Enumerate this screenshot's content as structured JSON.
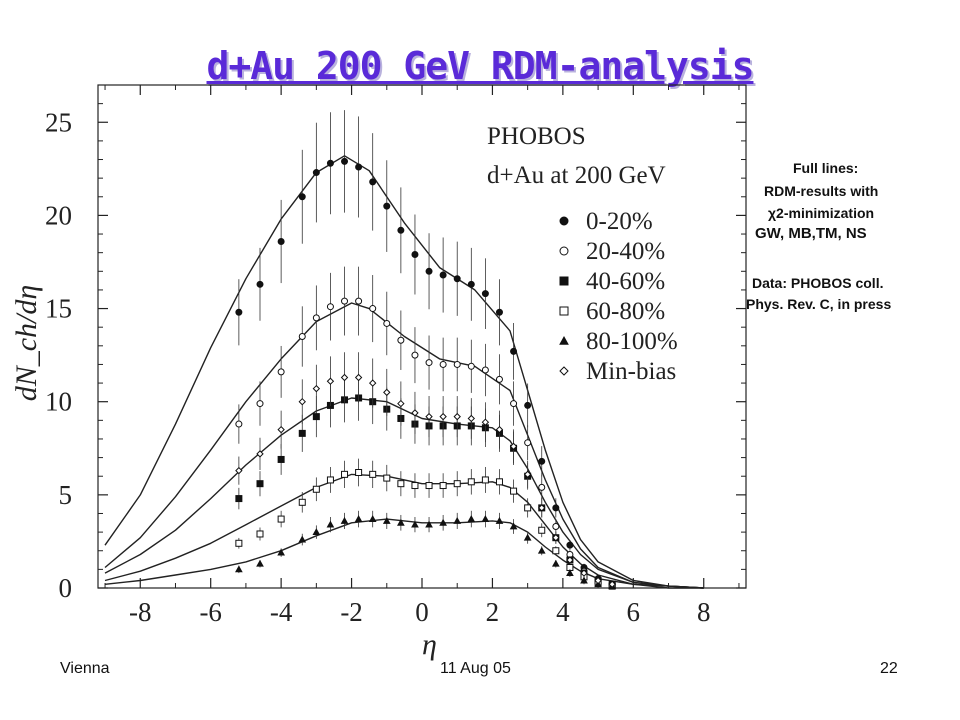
{
  "slide": {
    "title": "d+Au 200 GeV  RDM-analysis",
    "footer_left": "Vienna",
    "footer_center": "11 Aug 05",
    "footer_right": "22"
  },
  "notes": {
    "fit_line1": "Full lines:",
    "fit_line2": "RDM-results with",
    "fit_line3": "χ2-minimization",
    "fit_line4": "GW, MB,TM, NS",
    "data_line1": "Data: PHOBOS coll.",
    "data_line2": "Phys. Rev. C, in press"
  },
  "chart_data": {
    "type": "scatter",
    "title": "PHOBOS",
    "subtitle": "d+Au at 200 GeV",
    "xlabel": "η",
    "ylabel": "dN_ch/dη",
    "xlim": [
      -9.2,
      9.2
    ],
    "ylim": [
      0,
      27
    ],
    "x_ticks": [
      -8,
      -6,
      -4,
      -2,
      0,
      2,
      4,
      6,
      8
    ],
    "y_ticks": [
      0,
      5,
      10,
      15,
      20,
      25
    ],
    "grid": false,
    "legend_position": "top-right",
    "series": [
      {
        "name": "0-20%",
        "marker": "filled-circle",
        "x": [
          -5.2,
          -4.6,
          -4.0,
          -3.4,
          -3.0,
          -2.6,
          -2.2,
          -1.8,
          -1.4,
          -1.0,
          -0.6,
          -0.2,
          0.2,
          0.6,
          1.0,
          1.4,
          1.8,
          2.2,
          2.6,
          3.0,
          3.4,
          3.8,
          4.2,
          4.6,
          5.0,
          5.4
        ],
        "y": [
          14.8,
          16.3,
          18.6,
          21.0,
          22.3,
          22.8,
          22.9,
          22.6,
          21.8,
          20.5,
          19.2,
          17.9,
          17.0,
          16.8,
          16.6,
          16.3,
          15.8,
          14.8,
          12.7,
          9.8,
          6.8,
          4.3,
          2.3,
          1.1,
          0.5,
          0.2
        ]
      },
      {
        "name": "20-40%",
        "marker": "open-circle",
        "x": [
          -5.2,
          -4.6,
          -4.0,
          -3.4,
          -3.0,
          -2.6,
          -2.2,
          -1.8,
          -1.4,
          -1.0,
          -0.6,
          -0.2,
          0.2,
          0.6,
          1.0,
          1.4,
          1.8,
          2.2,
          2.6,
          3.0,
          3.4,
          3.8,
          4.2,
          4.6,
          5.0,
          5.4
        ],
        "y": [
          8.8,
          9.9,
          11.6,
          13.5,
          14.5,
          15.1,
          15.4,
          15.4,
          15.0,
          14.2,
          13.3,
          12.5,
          12.1,
          12.0,
          12.0,
          11.9,
          11.7,
          11.2,
          9.9,
          7.8,
          5.4,
          3.3,
          1.8,
          0.9,
          0.4,
          0.2
        ]
      },
      {
        "name": "40-60%",
        "marker": "filled-square",
        "x": [
          -5.2,
          -4.6,
          -4.0,
          -3.4,
          -3.0,
          -2.6,
          -2.2,
          -1.8,
          -1.4,
          -1.0,
          -0.6,
          -0.2,
          0.2,
          0.6,
          1.0,
          1.4,
          1.8,
          2.2,
          2.6,
          3.0,
          3.4,
          3.8,
          4.2,
          4.6,
          5.0,
          5.4
        ],
        "y": [
          4.8,
          5.6,
          6.9,
          8.3,
          9.2,
          9.8,
          10.1,
          10.2,
          10.0,
          9.6,
          9.1,
          8.8,
          8.7,
          8.7,
          8.7,
          8.7,
          8.6,
          8.3,
          7.5,
          6.0,
          4.3,
          2.7,
          1.5,
          0.8,
          0.4,
          0.2
        ]
      },
      {
        "name": "60-80%",
        "marker": "open-square",
        "x": [
          -5.2,
          -4.6,
          -4.0,
          -3.4,
          -3.0,
          -2.6,
          -2.2,
          -1.8,
          -1.4,
          -1.0,
          -0.6,
          -0.2,
          0.2,
          0.6,
          1.0,
          1.4,
          1.8,
          2.2,
          2.6,
          3.0,
          3.4,
          3.8,
          4.2,
          4.6,
          5.0,
          5.4
        ],
        "y": [
          2.4,
          2.9,
          3.7,
          4.6,
          5.3,
          5.8,
          6.1,
          6.2,
          6.1,
          5.9,
          5.6,
          5.5,
          5.5,
          5.5,
          5.6,
          5.7,
          5.8,
          5.7,
          5.2,
          4.3,
          3.1,
          2.0,
          1.1,
          0.6,
          0.3,
          0.1
        ]
      },
      {
        "name": "80-100%",
        "marker": "filled-triangle",
        "x": [
          -5.2,
          -4.6,
          -4.0,
          -3.4,
          -3.0,
          -2.6,
          -2.2,
          -1.8,
          -1.4,
          -1.0,
          -0.6,
          -0.2,
          0.2,
          0.6,
          1.0,
          1.4,
          1.8,
          2.2,
          2.6,
          3.0,
          3.4,
          3.8,
          4.2,
          4.6,
          5.0,
          5.4
        ],
        "y": [
          1.0,
          1.3,
          1.9,
          2.6,
          3.0,
          3.4,
          3.6,
          3.7,
          3.7,
          3.6,
          3.5,
          3.4,
          3.4,
          3.5,
          3.6,
          3.7,
          3.7,
          3.6,
          3.3,
          2.7,
          2.0,
          1.3,
          0.8,
          0.4,
          0.2,
          0.1
        ]
      },
      {
        "name": "Min-bias",
        "marker": "open-diamond",
        "x": [
          -5.2,
          -4.6,
          -4.0,
          -3.4,
          -3.0,
          -2.6,
          -2.2,
          -1.8,
          -1.4,
          -1.0,
          -0.6,
          -0.2,
          0.2,
          0.6,
          1.0,
          1.4,
          1.8,
          2.2,
          2.6,
          3.0,
          3.4,
          3.8,
          4.2,
          4.6,
          5.0,
          5.4
        ],
        "y": [
          6.3,
          7.2,
          8.5,
          10.0,
          10.7,
          11.1,
          11.3,
          11.3,
          11.0,
          10.5,
          9.9,
          9.4,
          9.2,
          9.2,
          9.2,
          9.1,
          8.9,
          8.5,
          7.6,
          6.1,
          4.3,
          2.7,
          1.5,
          0.8,
          0.4,
          0.2
        ]
      }
    ],
    "fit_curves": [
      {
        "x": [
          -9,
          -8,
          -7,
          -6,
          -5,
          -4,
          -3,
          -2.2,
          -1.5,
          -0.5,
          0.5,
          1.5,
          2.5,
          3,
          3.5,
          4,
          4.5,
          5,
          6,
          7,
          8
        ],
        "y": [
          2.3,
          5.0,
          8.8,
          12.9,
          16.6,
          19.8,
          22.3,
          23.2,
          22.4,
          19.6,
          17.2,
          16.0,
          13.8,
          10.6,
          7.4,
          4.6,
          2.6,
          1.4,
          0.4,
          0.1,
          0.0
        ]
      },
      {
        "x": [
          -9,
          -8,
          -7,
          -6,
          -5,
          -4,
          -3,
          -2,
          -1.5,
          -0.5,
          0.5,
          1.5,
          2.5,
          3,
          3.5,
          4,
          4.5,
          5,
          6,
          7,
          8
        ],
        "y": [
          1.1,
          2.7,
          4.9,
          7.4,
          10.0,
          12.3,
          14.3,
          15.3,
          15.0,
          13.5,
          12.3,
          11.9,
          10.6,
          8.2,
          5.8,
          3.7,
          2.1,
          1.1,
          0.3,
          0.1,
          0.0
        ]
      },
      {
        "x": [
          -9,
          -8,
          -7,
          -6,
          -5,
          -4,
          -3,
          -2,
          -1,
          0,
          1,
          2,
          2.5,
          3,
          3.5,
          4,
          4.5,
          5,
          6,
          7,
          8
        ],
        "y": [
          0.8,
          1.8,
          3.1,
          4.8,
          6.6,
          8.2,
          9.5,
          10.2,
          10.0,
          9.1,
          8.8,
          8.6,
          7.9,
          6.4,
          4.6,
          3.0,
          1.8,
          1.0,
          0.3,
          0.1,
          0.0
        ]
      },
      {
        "x": [
          -9,
          -8,
          -7,
          -6,
          -5,
          -4,
          -3,
          -2,
          -1,
          0,
          1,
          2,
          2.5,
          3,
          3.5,
          4,
          4.5,
          5,
          6,
          7,
          8
        ],
        "y": [
          0.4,
          0.9,
          1.6,
          2.4,
          3.4,
          4.4,
          5.4,
          6.1,
          6.0,
          5.6,
          5.6,
          5.7,
          5.4,
          4.6,
          3.4,
          2.2,
          1.3,
          0.7,
          0.2,
          0.1,
          0.0
        ]
      },
      {
        "x": [
          -9,
          -8,
          -7,
          -6,
          -5,
          -4,
          -3,
          -2,
          -1,
          0,
          1,
          2,
          2.5,
          3,
          3.5,
          4,
          4.5,
          5,
          6,
          7,
          8
        ],
        "y": [
          0.2,
          0.4,
          0.7,
          1.0,
          1.4,
          2.0,
          2.8,
          3.5,
          3.7,
          3.5,
          3.5,
          3.6,
          3.5,
          3.0,
          2.2,
          1.5,
          0.9,
          0.5,
          0.2,
          0.0,
          0.0
        ]
      }
    ]
  }
}
